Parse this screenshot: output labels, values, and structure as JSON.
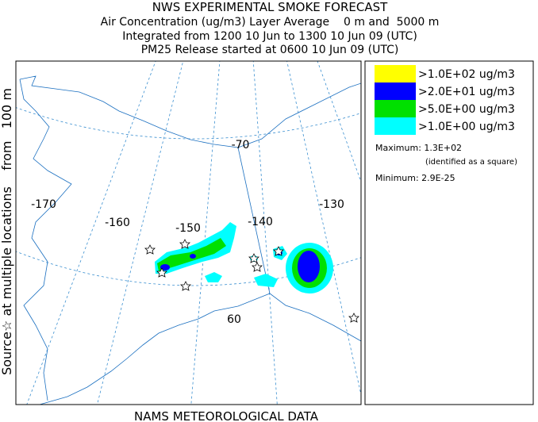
{
  "header": {
    "title": "NWS EXPERIMENTAL SMOKE FORECAST",
    "lines": [
      "Air Concentration (ug/m3) Layer Average    0 m and  5000 m",
      "Integrated from 1200 10 Jun to 1300 10 Jun 09 (UTC)",
      "PM25 Release started at 0600 10 Jun 09 (UTC)"
    ]
  },
  "source_label": "Source☆ at multiple locations    from   100 m",
  "map": {
    "labels": [
      "-170",
      "-160",
      "-150",
      "-140",
      "-130",
      "-70",
      "60"
    ]
  },
  "legend": {
    "items": [
      {
        "label": ">1.0E+02 ug/m3",
        "color": "#ffff00"
      },
      {
        "label": ">2.0E+01 ug/m3",
        "color": "#0000ff"
      },
      {
        "label": ">5.0E+00 ug/m3",
        "color": "#00e000"
      },
      {
        "label": ">1.0E+00 ug/m3",
        "color": "#00ffff"
      }
    ],
    "maximum": "Maximum: 1.3E+02",
    "maximum_note": "(identified as a square)",
    "minimum": "Minimum: 2.9E-25"
  },
  "footer": "NAMS METEOROLOGICAL DATA"
}
